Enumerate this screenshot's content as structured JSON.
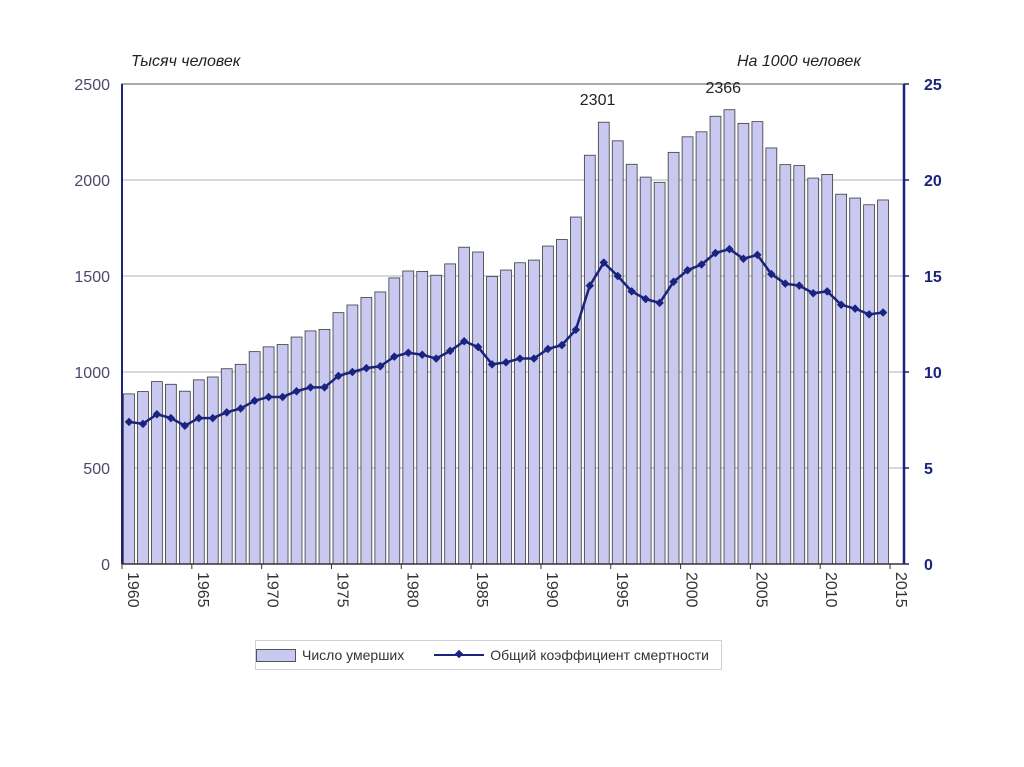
{
  "chart_data": {
    "type": "bar",
    "y_left_label": "Тысяч человек",
    "y_right_label": "На 1000 человек",
    "ylim_left": [
      0,
      2500
    ],
    "ylim_right": [
      0,
      25
    ],
    "y_left_ticks": [
      "0",
      "500",
      "1000",
      "1500",
      "2000",
      "2500"
    ],
    "y_right_ticks": [
      "0",
      "5",
      "10",
      "15",
      "20",
      "25"
    ],
    "x_ticks": [
      "1960",
      "1965",
      "1970",
      "1975",
      "1980",
      "1985",
      "1990",
      "1995",
      "2000",
      "2005",
      "2010",
      "2015"
    ],
    "grid": true,
    "annotations": [
      {
        "text": "2301",
        "year": 1994
      },
      {
        "text": "2366",
        "year": 2003
      }
    ],
    "years": [
      1960,
      1961,
      1962,
      1963,
      1964,
      1965,
      1966,
      1967,
      1968,
      1969,
      1970,
      1971,
      1972,
      1973,
      1974,
      1975,
      1976,
      1977,
      1978,
      1979,
      1980,
      1981,
      1982,
      1983,
      1984,
      1985,
      1986,
      1987,
      1988,
      1989,
      1990,
      1991,
      1992,
      1993,
      1994,
      1995,
      1996,
      1997,
      1998,
      1999,
      2000,
      2001,
      2002,
      2003,
      2004,
      2005,
      2006,
      2007,
      2008,
      2009,
      2010,
      2011,
      2012,
      2013,
      2014
    ],
    "series": [
      {
        "name": "Число умерших",
        "axis": "left",
        "kind": "bar",
        "color": "#c8c8f0",
        "values": [
          886,
          898,
          950,
          936,
          900,
          959,
          974,
          1017,
          1040,
          1106,
          1131,
          1143,
          1182,
          1214,
          1222,
          1309,
          1349,
          1388,
          1417,
          1490,
          1526,
          1524,
          1504,
          1563,
          1650,
          1625,
          1498,
          1531,
          1569,
          1583,
          1656,
          1690,
          1807,
          2129,
          2301,
          2204,
          2082,
          2015,
          1988,
          2144,
          2225,
          2251,
          2332,
          2366,
          2295,
          2304,
          2167,
          2080,
          2075,
          2010,
          2029,
          1926,
          1906,
          1871,
          1896
        ]
      },
      {
        "name": "Общий коэффициент смертности",
        "axis": "right",
        "kind": "line",
        "color": "#1a237e",
        "values": [
          7.4,
          7.3,
          7.8,
          7.6,
          7.2,
          7.6,
          7.6,
          7.9,
          8.1,
          8.5,
          8.7,
          8.7,
          9.0,
          9.2,
          9.2,
          9.8,
          10.0,
          10.2,
          10.3,
          10.8,
          11.0,
          10.9,
          10.7,
          11.1,
          11.6,
          11.3,
          10.4,
          10.5,
          10.7,
          10.7,
          11.2,
          11.4,
          12.2,
          14.5,
          15.7,
          15.0,
          14.2,
          13.8,
          13.6,
          14.7,
          15.3,
          15.6,
          16.2,
          16.4,
          15.9,
          16.1,
          15.1,
          14.6,
          14.5,
          14.1,
          14.2,
          13.5,
          13.3,
          13.0,
          13.1
        ]
      }
    ]
  }
}
